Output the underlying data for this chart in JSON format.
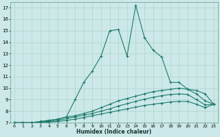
{
  "xlabel": "Humidex (Indice chaleur)",
  "xlim": [
    -0.5,
    23.5
  ],
  "ylim": [
    7,
    17.5
  ],
  "background_color": "#cce8e8",
  "grid_color": "#b0d4cc",
  "line_color": "#1a7a6a",
  "lines": [
    {
      "x": [
        0,
        1,
        2,
        3,
        4,
        5,
        6,
        7,
        8,
        9,
        10,
        11,
        12,
        13,
        14,
        15,
        16,
        17,
        18,
        19,
        20,
        21,
        22,
        23
      ],
      "y": [
        7.0,
        7.0,
        7.0,
        7.1,
        7.2,
        7.3,
        7.5,
        9.0,
        10.5,
        11.5,
        12.8,
        15.0,
        15.1,
        12.8,
        17.2,
        14.4,
        13.3,
        12.7,
        10.5,
        10.5,
        9.9,
        9.8,
        9.5,
        8.6
      ]
    },
    {
      "x": [
        0,
        1,
        2,
        3,
        4,
        5,
        6,
        7,
        8,
        9,
        10,
        11,
        12,
        13,
        14,
        15,
        16,
        17,
        18,
        19,
        20,
        21,
        22,
        23
      ],
      "y": [
        7.0,
        7.0,
        7.0,
        7.1,
        7.2,
        7.3,
        7.5,
        7.6,
        7.8,
        8.0,
        8.3,
        8.6,
        8.9,
        9.1,
        9.3,
        9.5,
        9.7,
        9.8,
        9.9,
        10.0,
        9.9,
        9.5,
        8.9,
        8.6
      ]
    },
    {
      "x": [
        0,
        1,
        2,
        3,
        4,
        5,
        6,
        7,
        8,
        9,
        10,
        11,
        12,
        13,
        14,
        15,
        16,
        17,
        18,
        19,
        20,
        21,
        22,
        23
      ],
      "y": [
        7.0,
        7.0,
        7.0,
        7.05,
        7.1,
        7.2,
        7.35,
        7.5,
        7.65,
        7.8,
        8.0,
        8.2,
        8.45,
        8.65,
        8.85,
        9.05,
        9.2,
        9.35,
        9.45,
        9.5,
        9.45,
        9.0,
        8.55,
        8.6
      ]
    },
    {
      "x": [
        0,
        1,
        2,
        3,
        4,
        5,
        6,
        7,
        8,
        9,
        10,
        11,
        12,
        13,
        14,
        15,
        16,
        17,
        18,
        19,
        20,
        21,
        22,
        23
      ],
      "y": [
        7.0,
        7.0,
        7.0,
        7.0,
        7.05,
        7.1,
        7.2,
        7.3,
        7.45,
        7.6,
        7.75,
        7.9,
        8.05,
        8.2,
        8.35,
        8.5,
        8.6,
        8.7,
        8.8,
        8.85,
        8.85,
        8.6,
        8.3,
        8.6
      ]
    }
  ],
  "xticks": [
    0,
    1,
    2,
    3,
    4,
    5,
    6,
    7,
    8,
    9,
    10,
    11,
    12,
    13,
    14,
    15,
    16,
    17,
    18,
    19,
    20,
    21,
    22,
    23
  ],
  "yticks": [
    7,
    8,
    9,
    10,
    11,
    12,
    13,
    14,
    15,
    16,
    17
  ],
  "marker": "+",
  "markersize": 3,
  "linewidth": 0.8
}
